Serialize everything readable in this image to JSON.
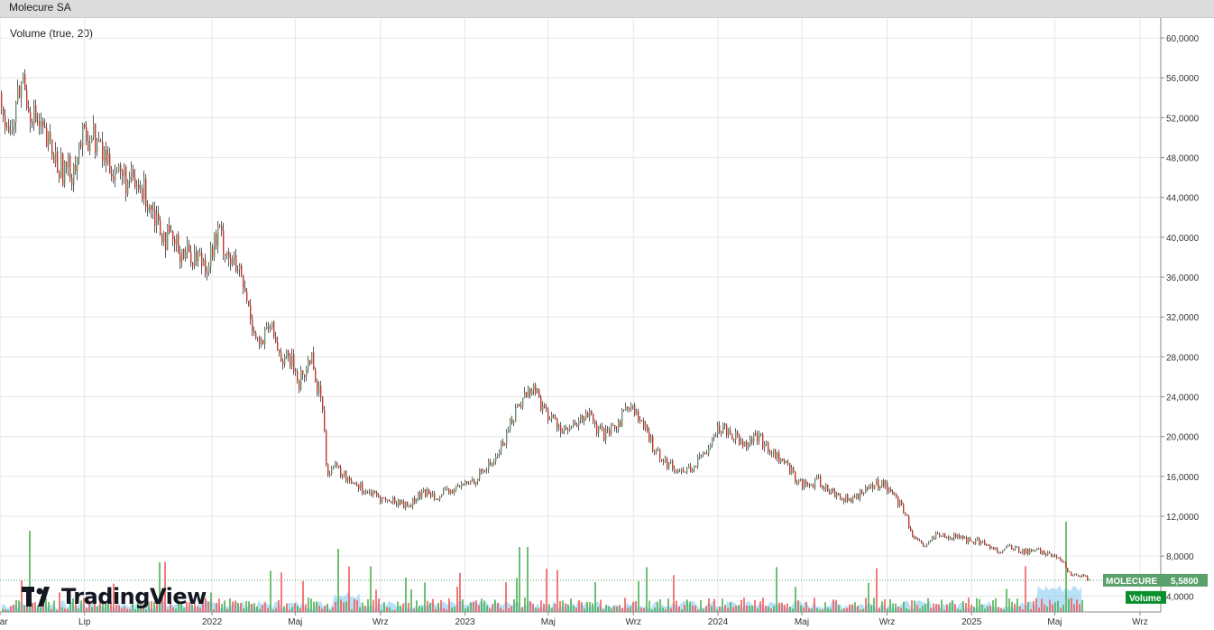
{
  "window": {
    "title": "Molecure SA"
  },
  "indicator": {
    "label": "Volume (true, 20)"
  },
  "logo": {
    "text": "TradingView"
  },
  "price_tag": {
    "symbol": "MOLECURE",
    "value": "5,5800",
    "color": "#5aa06a"
  },
  "volume_tag": {
    "label": "Volume",
    "color": "#0a8f2e"
  },
  "colors": {
    "up": "#26a69a",
    "down": "#ef5350",
    "candle_up": "#6f8f6f",
    "candle_down": "#c0392b",
    "grid": "#e6e6e6",
    "volume_up": "#4caf50",
    "volume_down": "#f05a5a",
    "volume_ma": "#7ec8f0"
  },
  "chart_data": {
    "type": "line",
    "title": "Molecure SA",
    "ylim": [
      2400,
      62000
    ],
    "y_ticks": [
      "60,0000",
      "56,0000",
      "52,0000",
      "48,0000",
      "44,0000",
      "40,0000",
      "36,0000",
      "32,0000",
      "28,0000",
      "24,0000",
      "20,0000",
      "16,0000",
      "12,0000",
      "8,0000",
      "4,0000"
    ],
    "y_tick_values": [
      60,
      56,
      52,
      48,
      44,
      40,
      36,
      32,
      28,
      24,
      20,
      16,
      12,
      8,
      4
    ],
    "x_ticks": [
      "Mar",
      "Lip",
      "2022",
      "Maj",
      "Wrz",
      "2023",
      "Maj",
      "Wrz",
      "2024",
      "Maj",
      "Wrz",
      "2025",
      "Maj",
      "Wrz"
    ],
    "x_tick_dates": [
      "2021-03-01",
      "2021-07-01",
      "2022-01-01",
      "2022-05-01",
      "2022-09-01",
      "2023-01-01",
      "2023-05-01",
      "2023-09-01",
      "2024-01-01",
      "2024-05-01",
      "2024-09-01",
      "2025-01-01",
      "2025-05-01",
      "2025-09-01"
    ],
    "x_range": [
      "2021-03-01",
      "2025-10-01"
    ],
    "grid": true,
    "series": [
      {
        "name": "MOLECURE",
        "x": [
          "2021-03-01",
          "2021-03-15",
          "2021-04-01",
          "2021-04-10",
          "2021-04-25",
          "2021-05-10",
          "2021-05-25",
          "2021-06-10",
          "2021-06-25",
          "2021-07-10",
          "2021-07-25",
          "2021-08-10",
          "2021-08-25",
          "2021-09-10",
          "2021-09-25",
          "2021-10-10",
          "2021-10-25",
          "2021-11-10",
          "2021-11-25",
          "2021-12-10",
          "2021-12-25",
          "2022-01-10",
          "2022-01-25",
          "2022-02-10",
          "2022-02-25",
          "2022-03-10",
          "2022-03-25",
          "2022-04-10",
          "2022-04-25",
          "2022-05-05",
          "2022-05-15",
          "2022-05-25",
          "2022-06-01",
          "2022-06-08",
          "2022-06-15",
          "2022-06-25",
          "2022-07-10",
          "2022-07-25",
          "2022-08-10",
          "2022-08-25",
          "2022-09-10",
          "2022-09-25",
          "2022-10-10",
          "2022-10-25",
          "2022-11-10",
          "2022-11-25",
          "2022-12-10",
          "2022-12-25",
          "2023-01-10",
          "2023-01-25",
          "2023-02-10",
          "2023-02-25",
          "2023-03-10",
          "2023-03-25",
          "2023-04-10",
          "2023-04-25",
          "2023-05-10",
          "2023-05-25",
          "2023-06-10",
          "2023-06-25",
          "2023-07-10",
          "2023-07-25",
          "2023-08-10",
          "2023-08-25",
          "2023-09-10",
          "2023-09-25",
          "2023-10-10",
          "2023-10-25",
          "2023-11-10",
          "2023-11-25",
          "2023-12-10",
          "2023-12-25",
          "2024-01-10",
          "2024-01-25",
          "2024-02-10",
          "2024-02-25",
          "2024-03-10",
          "2024-03-25",
          "2024-04-10",
          "2024-04-25",
          "2024-05-10",
          "2024-05-25",
          "2024-06-10",
          "2024-06-25",
          "2024-07-10",
          "2024-07-25",
          "2024-08-10",
          "2024-08-25",
          "2024-09-10",
          "2024-09-25",
          "2024-10-10",
          "2024-10-25",
          "2024-11-10",
          "2024-11-25",
          "2024-12-10",
          "2024-12-25",
          "2025-01-10",
          "2025-01-25",
          "2025-02-10",
          "2025-02-25",
          "2025-03-10",
          "2025-03-25",
          "2025-04-10",
          "2025-04-25",
          "2025-05-10",
          "2025-05-25",
          "2025-06-10",
          "2025-06-20"
        ],
        "values": [
          54.5,
          50.0,
          56.0,
          53.5,
          51.0,
          49.0,
          47.0,
          46.5,
          49.5,
          50.5,
          48.5,
          47.0,
          46.0,
          45.0,
          44.5,
          42.5,
          40.0,
          39.0,
          38.5,
          38.0,
          37.5,
          40.5,
          38.0,
          36.0,
          32.0,
          29.0,
          31.0,
          28.0,
          27.5,
          25.5,
          26.5,
          28.5,
          24.5,
          24.0,
          16.5,
          17.0,
          16.0,
          15.5,
          14.5,
          14.0,
          13.5,
          13.5,
          13.0,
          14.0,
          14.5,
          14.0,
          14.5,
          15.0,
          15.5,
          16.5,
          17.5,
          19.5,
          22.0,
          24.0,
          25.0,
          22.5,
          21.5,
          20.5,
          21.0,
          22.5,
          20.5,
          20.0,
          21.5,
          23.5,
          21.5,
          19.5,
          18.0,
          17.0,
          16.5,
          17.0,
          18.0,
          20.5,
          21.0,
          20.0,
          19.5,
          20.0,
          19.0,
          18.0,
          17.0,
          15.5,
          15.0,
          15.5,
          14.5,
          14.0,
          13.5,
          14.5,
          15.0,
          15.5,
          14.0,
          12.5,
          9.5,
          9.0,
          10.0,
          10.0,
          10.0,
          9.5,
          9.5,
          9.0,
          8.5,
          9.0,
          8.5,
          8.5,
          8.5,
          8.0,
          7.5,
          6.0,
          6.0,
          5.58
        ]
      }
    ]
  }
}
